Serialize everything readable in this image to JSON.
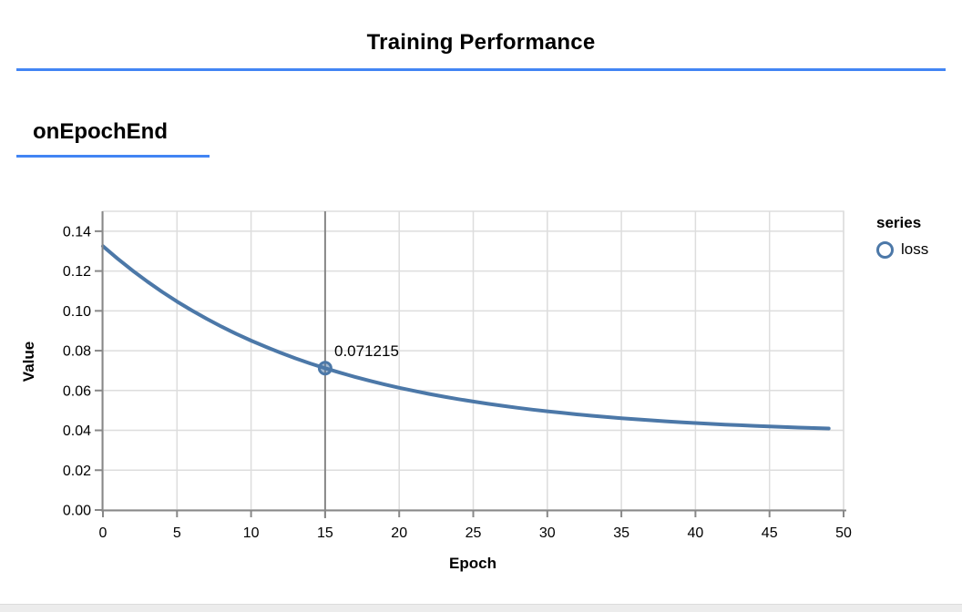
{
  "header": {
    "title": "Training Performance"
  },
  "section": {
    "label": "onEpochEnd"
  },
  "legend": {
    "title": "series",
    "items": [
      {
        "label": "loss",
        "color": "#4c78a8"
      }
    ]
  },
  "colors": {
    "accent_underline": "#4285f4",
    "line": "#4c78a8",
    "grid": "#dddddd",
    "axis": "#888888",
    "rule": "#878787",
    "text": "#000000"
  },
  "chart_data": {
    "type": "line",
    "title": "Training Performance",
    "subtitle": "onEpochEnd",
    "xlabel": "Epoch",
    "ylabel": "Value",
    "xlim": [
      0,
      50
    ],
    "ylim": [
      0,
      0.15
    ],
    "grid": true,
    "legend_position": "right",
    "x_ticks": [
      "0",
      "5",
      "10",
      "15",
      "20",
      "25",
      "30",
      "35",
      "40",
      "45",
      "50"
    ],
    "y_ticks": [
      "0.00",
      "0.02",
      "0.04",
      "0.06",
      "0.08",
      "0.10",
      "0.12",
      "0.14"
    ],
    "series": [
      {
        "name": "loss",
        "color": "#4c78a8",
        "x": [
          0,
          1,
          2,
          3,
          4,
          5,
          6,
          7,
          8,
          9,
          10,
          11,
          12,
          13,
          14,
          15,
          16,
          17,
          18,
          19,
          20,
          21,
          22,
          23,
          24,
          25,
          26,
          27,
          28,
          29,
          30,
          31,
          32,
          33,
          34,
          35,
          36,
          37,
          38,
          39,
          40,
          41,
          42,
          43,
          44,
          45,
          46,
          47,
          48,
          49
        ],
        "values": [
          0.1325,
          0.126142,
          0.12021,
          0.114676,
          0.109513,
          0.104697,
          0.100209,
          0.096018,
          0.092109,
          0.088461,
          0.085059,
          0.081885,
          0.078925,
          0.076163,
          0.073587,
          0.071215,
          0.068945,
          0.066853,
          0.064902,
          0.063082,
          0.061384,
          0.0598,
          0.058323,
          0.056944,
          0.055659,
          0.054459,
          0.05334,
          0.052297,
          0.051323,
          0.050415,
          0.049568,
          0.048777,
          0.04804,
          0.047352,
          0.046711,
          0.046112,
          0.045554,
          0.045033,
          0.044548,
          0.044094,
          0.043672,
          0.043277,
          0.042909,
          0.042566,
          0.042246,
          0.041948,
          0.041669,
          0.041409,
          0.041167,
          0.040941
        ]
      }
    ],
    "highlight": {
      "x": 15,
      "y": 0.071215,
      "label": "0.071215"
    }
  }
}
